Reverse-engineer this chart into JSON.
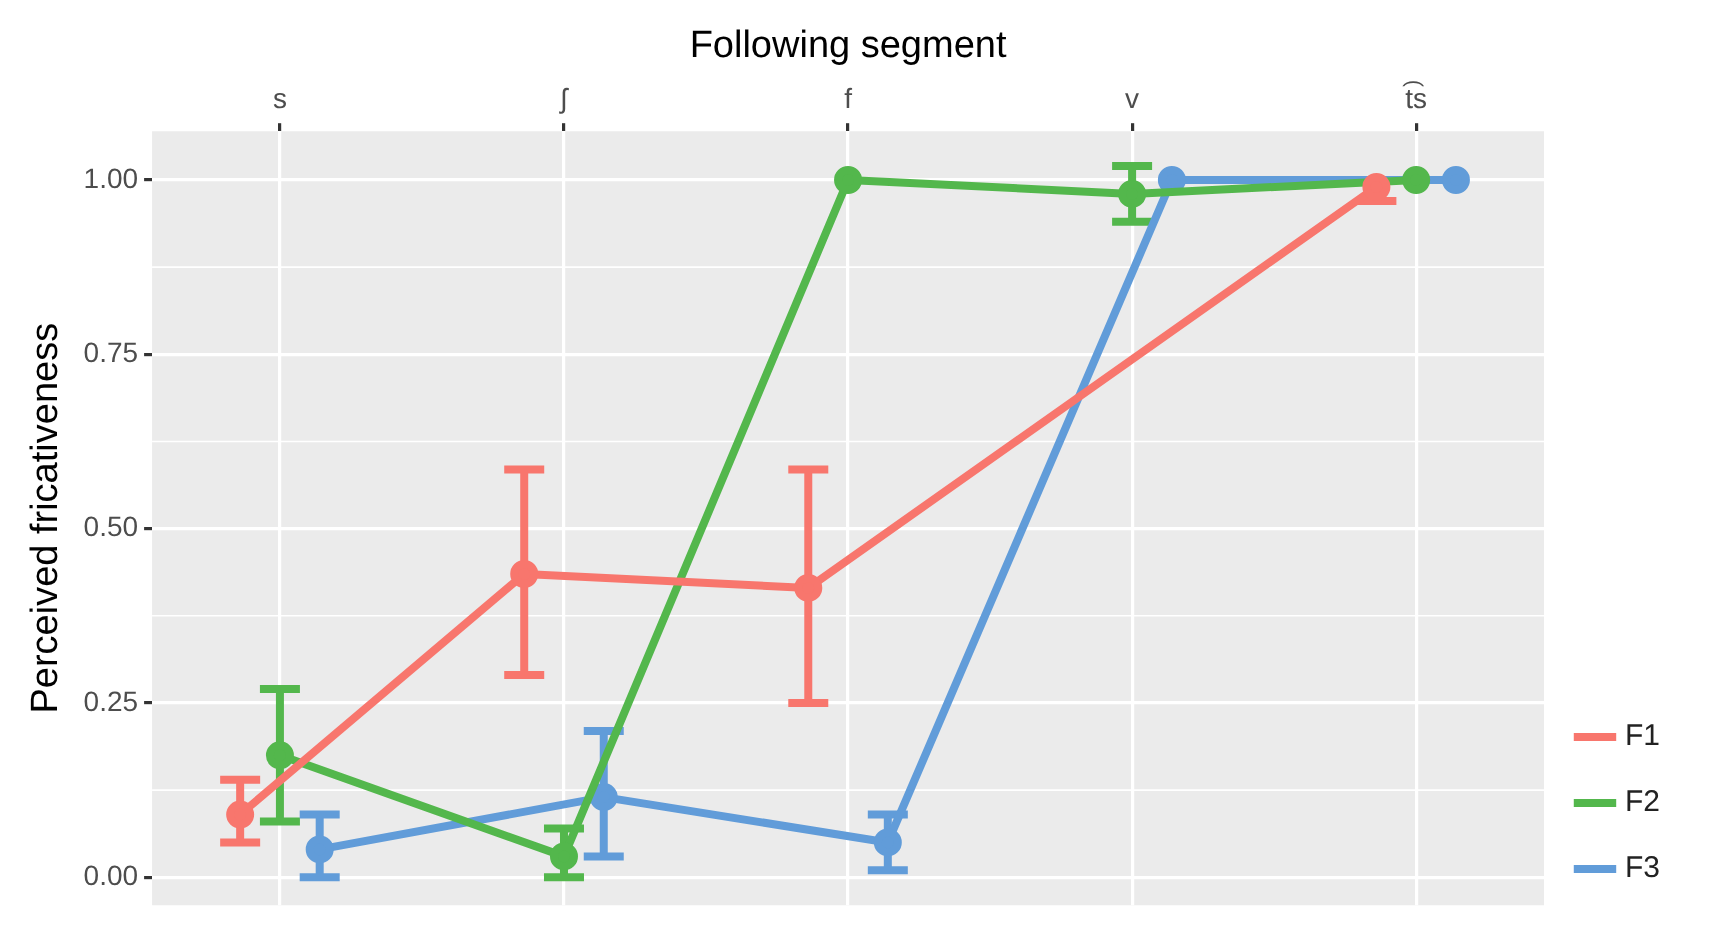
{
  "chart_data": {
    "type": "line",
    "xlabel": "Following segment",
    "ylabel": "Perceived fricativeness",
    "categories": [
      "s",
      "ʃ",
      "f",
      "v",
      "t͡s"
    ],
    "series": [
      {
        "name": "F1",
        "color": "#f8766d",
        "values": [
          0.09,
          0.435,
          0.415,
          null,
          0.99
        ],
        "errors": [
          [
            0.05,
            0.14
          ],
          [
            0.29,
            0.585
          ],
          [
            0.25,
            0.585
          ],
          null,
          [
            0.97,
            1.0
          ]
        ]
      },
      {
        "name": "F2",
        "color": "#53b74c",
        "values": [
          0.175,
          0.03,
          1.0,
          0.98,
          1.0
        ],
        "errors": [
          [
            0.08,
            0.27
          ],
          [
            0,
            0.07
          ],
          null,
          [
            0.94,
            1.02
          ],
          null
        ]
      },
      {
        "name": "F3",
        "color": "#619cd9",
        "values": [
          0.04,
          0.115,
          0.05,
          1.0,
          1.0
        ],
        "errors": [
          [
            0,
            0.09
          ],
          [
            0.03,
            0.21
          ],
          [
            0.01,
            0.09
          ],
          null,
          null
        ]
      }
    ],
    "ylim": [
      -0.04,
      1.07
    ],
    "yticks": [
      {
        "value": 0,
        "label": "0.00"
      },
      {
        "value": 0.25,
        "label": "0.25"
      },
      {
        "value": 0.5,
        "label": "0.50"
      },
      {
        "value": 0.75,
        "label": "0.75"
      },
      {
        "value": 1,
        "label": "1.00"
      }
    ],
    "grid": true,
    "legend": "bottom right",
    "marker": "circle",
    "line_style": "solid"
  }
}
